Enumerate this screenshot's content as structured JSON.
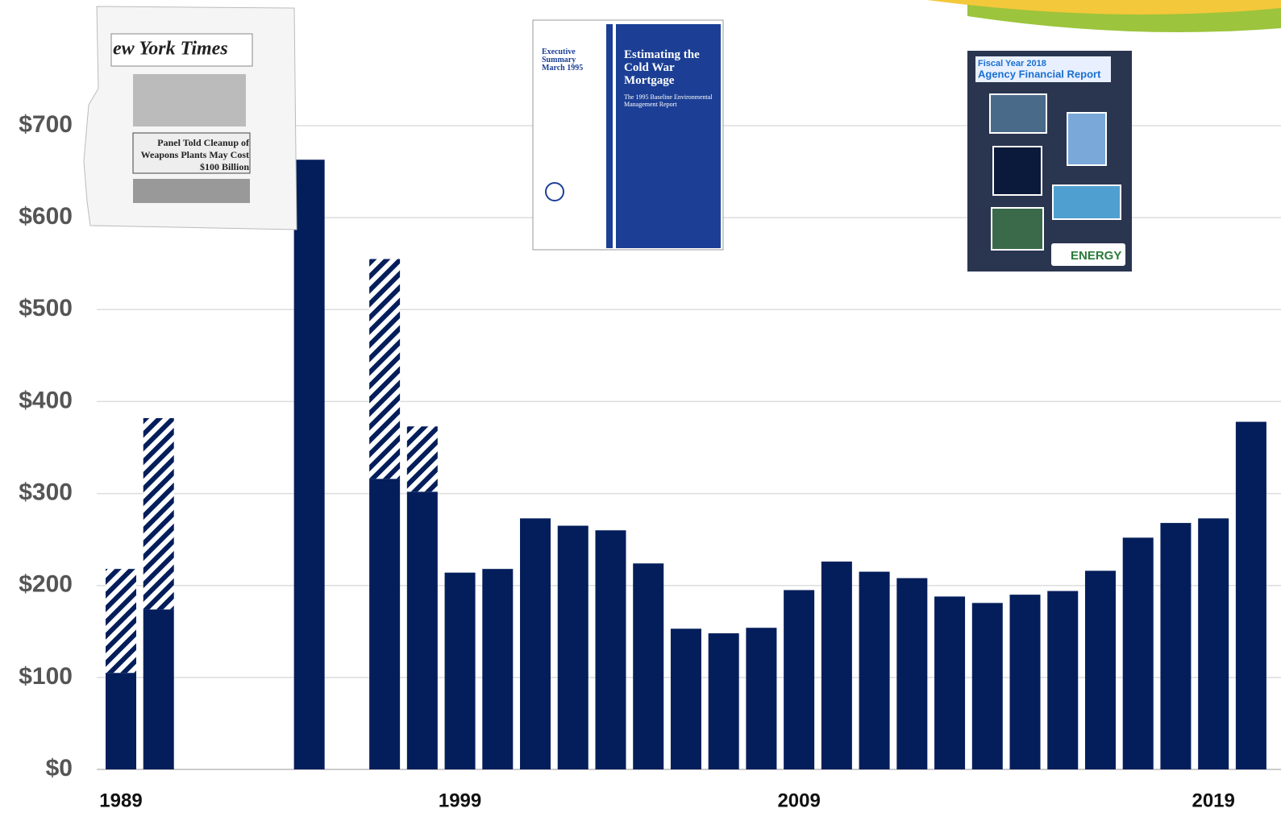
{
  "chart_data": {
    "type": "stacked-bar",
    "categories": [
      "1989",
      null,
      null,
      null,
      null,
      null,
      null,
      null,
      null,
      "1999",
      null,
      null,
      null,
      null,
      null,
      null,
      null,
      null,
      "2009",
      null,
      null,
      null,
      null,
      null,
      null,
      null,
      null,
      null,
      null,
      "2019",
      null
    ],
    "series": [
      {
        "color": "#041e5b",
        "fill": "solid",
        "values": [
          105,
          174,
          null,
          null,
          null,
          663,
          null,
          316,
          302,
          214,
          218,
          273,
          265,
          260,
          224,
          153,
          148,
          154,
          195,
          226,
          215,
          208,
          188,
          181,
          190,
          194,
          216,
          252,
          268,
          273,
          378
        ]
      },
      {
        "color": "#041e5b",
        "fill": "hatched",
        "values": [
          113,
          208,
          null,
          null,
          null,
          null,
          null,
          239,
          71,
          null,
          null,
          null,
          null,
          null,
          null,
          null,
          null,
          null,
          null,
          null,
          null,
          null,
          null,
          null,
          null,
          null,
          null,
          null,
          null,
          null,
          null
        ]
      }
    ],
    "ylim": [
      0,
      700
    ],
    "yticks": [
      {
        "value": 0,
        "label": "$0"
      },
      {
        "value": 100,
        "label": "$100"
      },
      {
        "value": 200,
        "label": "$200"
      },
      {
        "value": 300,
        "label": "$300"
      },
      {
        "value": 400,
        "label": "$400"
      },
      {
        "value": 500,
        "label": "$500"
      },
      {
        "value": 600,
        "label": "$600"
      },
      {
        "value": 700,
        "label": "$700"
      }
    ],
    "grid": true
  },
  "images": {
    "newspaper": {
      "masthead": "ew York Times",
      "headline": "Panel Told Cleanup of Weapons Plants May Cost $100 Billion"
    },
    "report1995": {
      "side": "Executive Summary March 1995",
      "title": "Estimating the Cold War Mortgage",
      "subtitle": "The 1995 Baseline Environmental Management Report"
    },
    "report2018": {
      "year": "Fiscal Year 2018",
      "title": "Agency Financial Report",
      "logo": "ENERGY"
    }
  }
}
